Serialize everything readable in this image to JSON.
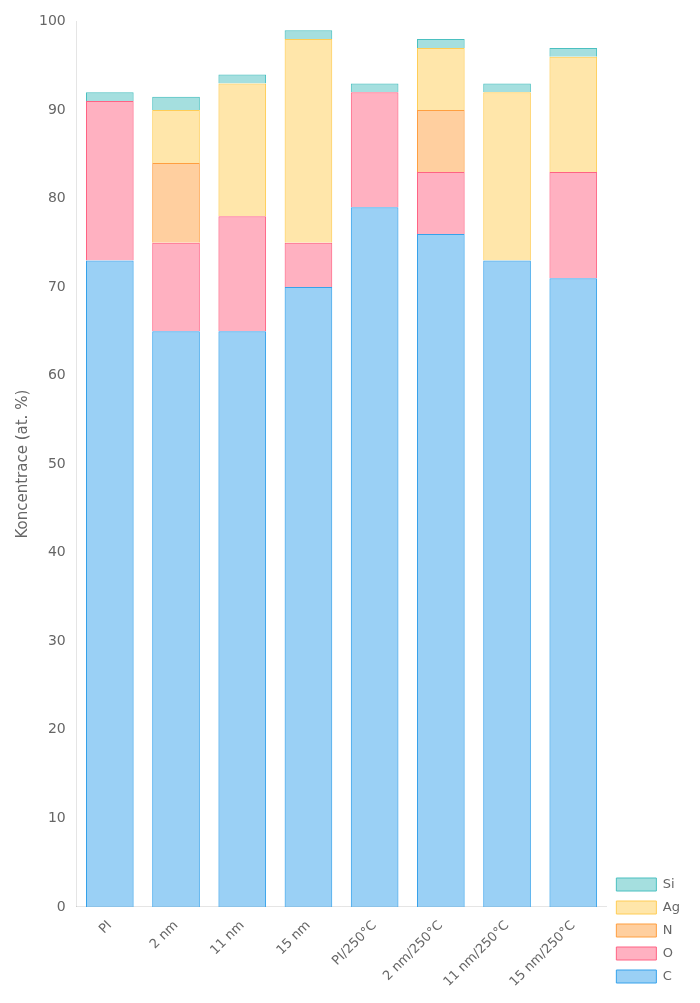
{
  "chart_data": {
    "type": "bar",
    "stacked": true,
    "categories": [
      "PI",
      "2 nm",
      "11 nm",
      "15 nm",
      "PI/250°C",
      "2 nm/250°C",
      "11 nm/250°C",
      "15 nm/250°C"
    ],
    "series": [
      {
        "name": "C",
        "values": [
          73,
          65,
          65,
          70,
          79,
          76,
          73,
          71
        ]
      },
      {
        "name": "O",
        "values": [
          18,
          10,
          13,
          5,
          13,
          7,
          0,
          12
        ]
      },
      {
        "name": "N",
        "values": [
          0,
          9,
          0,
          0,
          0,
          7,
          0,
          0
        ]
      },
      {
        "name": "Ag",
        "values": [
          0,
          6,
          15,
          23,
          0,
          7,
          19,
          13
        ]
      },
      {
        "name": "Si",
        "values": [
          1,
          1.5,
          1,
          1,
          1,
          1,
          1,
          1
        ]
      }
    ],
    "ylabel": "Koncentrace (at. %)",
    "ylim": [
      0,
      100
    ],
    "yticks": [
      0,
      10,
      20,
      30,
      40,
      50,
      60,
      70,
      80,
      90,
      100
    ],
    "grid": false,
    "legend": "lower right"
  }
}
